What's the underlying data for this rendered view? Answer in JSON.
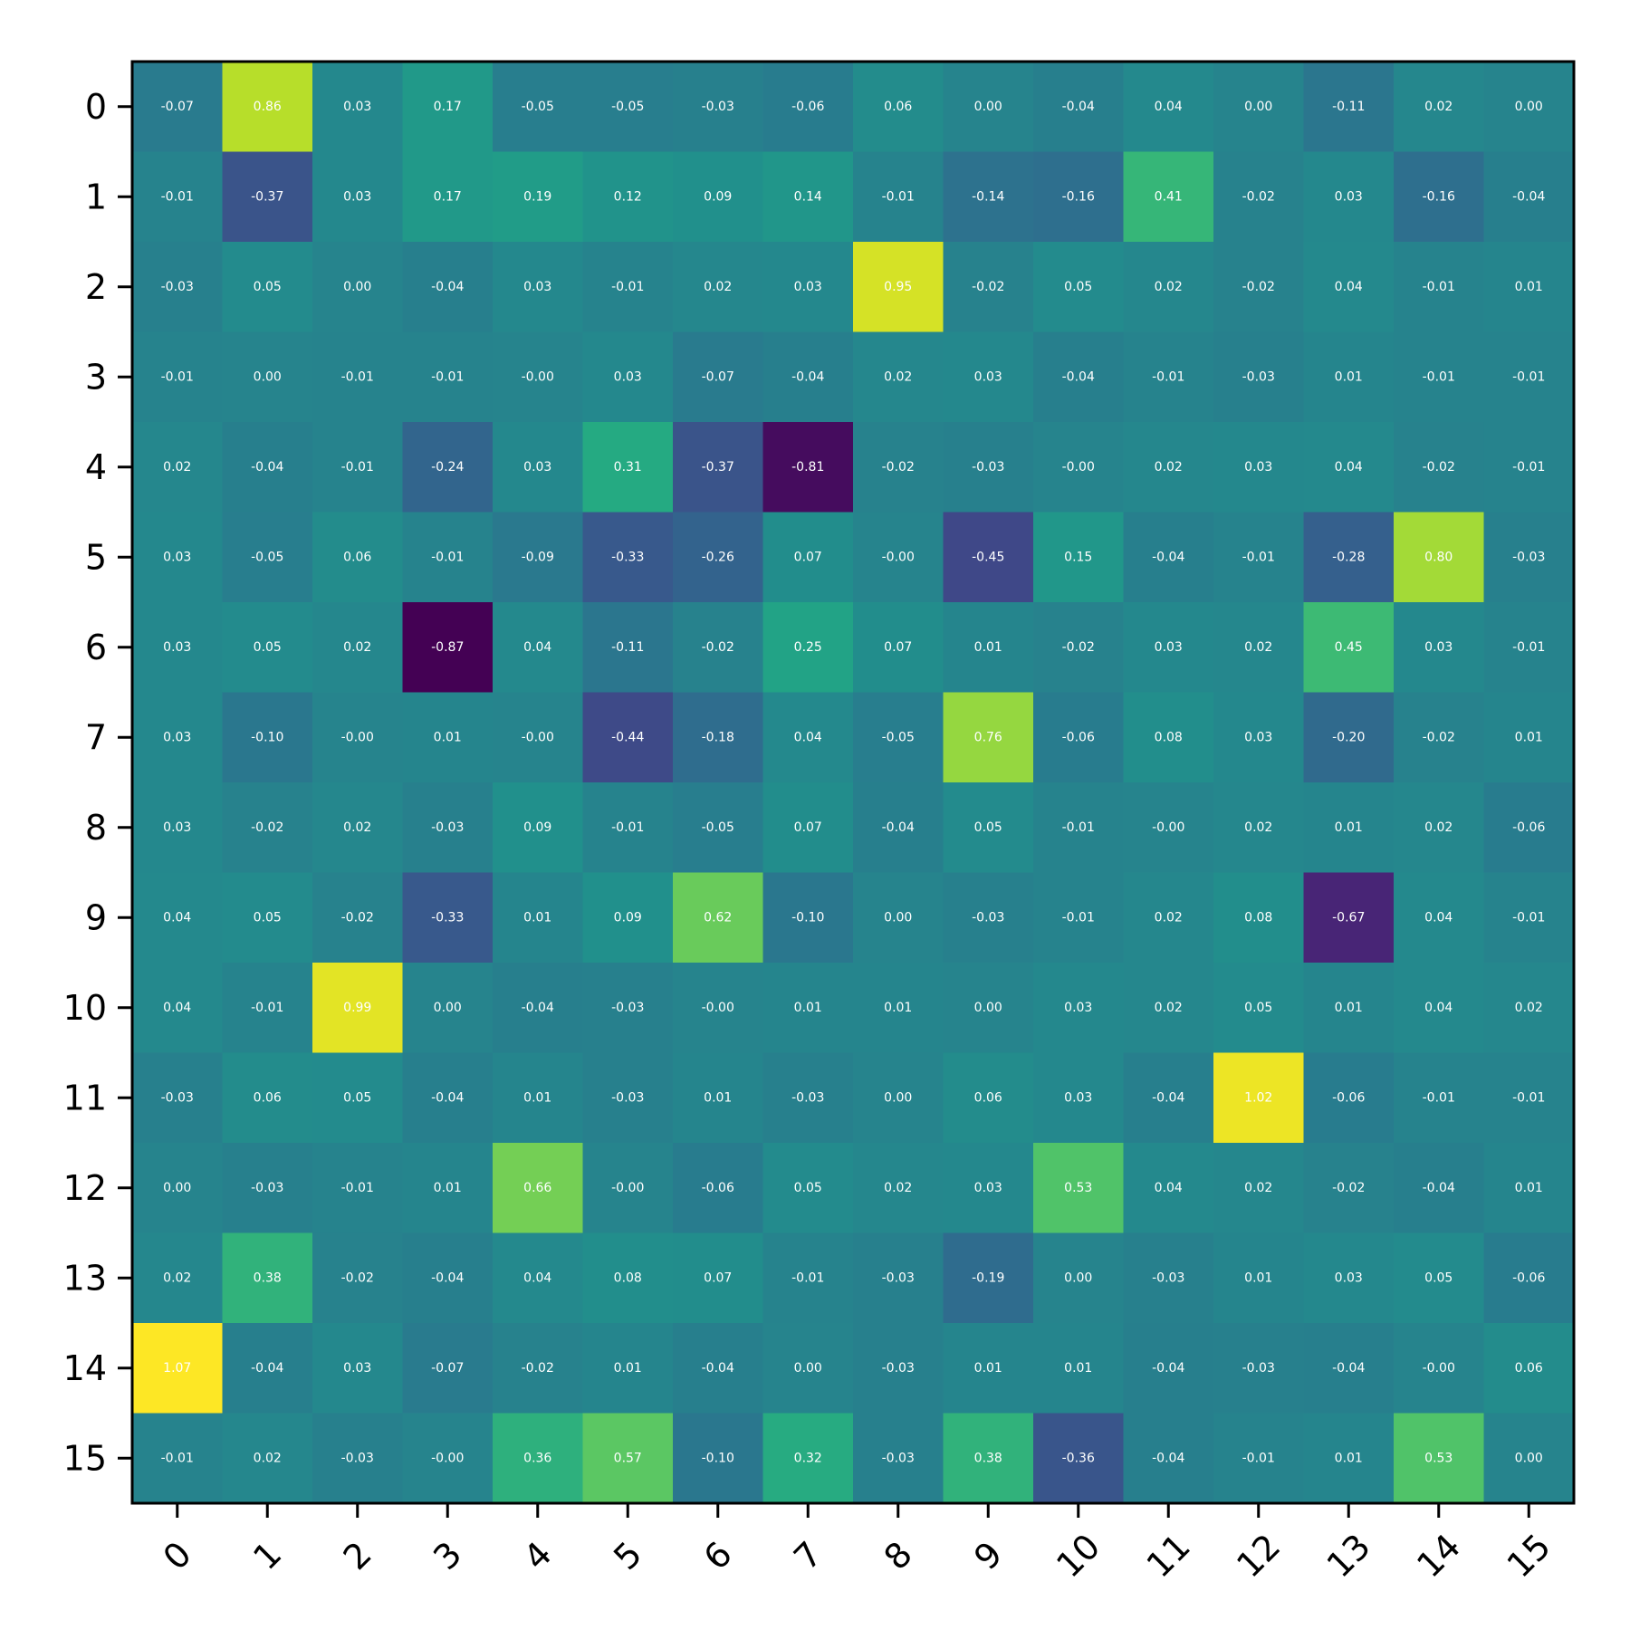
{
  "chart_data": {
    "type": "heatmap",
    "title": "",
    "xlabel": "",
    "ylabel": "",
    "x_categories": [
      "0",
      "1",
      "2",
      "3",
      "4",
      "5",
      "6",
      "7",
      "8",
      "9",
      "10",
      "11",
      "12",
      "13",
      "14",
      "15"
    ],
    "y_categories": [
      "0",
      "1",
      "2",
      "3",
      "4",
      "5",
      "6",
      "7",
      "8",
      "9",
      "10",
      "11",
      "12",
      "13",
      "14",
      "15"
    ],
    "values": [
      [
        -0.07,
        0.86,
        0.03,
        0.17,
        -0.05,
        -0.05,
        -0.03,
        -0.06,
        0.06,
        0.0,
        -0.04,
        0.04,
        0.0,
        -0.11,
        0.02,
        0.0
      ],
      [
        -0.01,
        -0.37,
        0.03,
        0.17,
        0.19,
        0.12,
        0.09,
        0.14,
        -0.01,
        -0.14,
        -0.16,
        0.41,
        -0.02,
        0.03,
        -0.16,
        -0.04
      ],
      [
        -0.03,
        0.05,
        0.0,
        -0.04,
        0.03,
        -0.01,
        0.02,
        0.03,
        0.95,
        -0.02,
        0.05,
        0.02,
        -0.02,
        0.04,
        -0.01,
        0.01
      ],
      [
        -0.01,
        0.0,
        -0.01,
        -0.01,
        -0.0,
        0.03,
        -0.07,
        -0.04,
        0.02,
        0.03,
        -0.04,
        -0.01,
        -0.03,
        0.01,
        -0.01,
        -0.01
      ],
      [
        0.02,
        -0.04,
        -0.01,
        -0.24,
        0.03,
        0.31,
        -0.37,
        -0.81,
        -0.02,
        -0.03,
        -0.0,
        0.02,
        0.03,
        0.04,
        -0.02,
        -0.01
      ],
      [
        0.03,
        -0.05,
        0.06,
        -0.01,
        -0.09,
        -0.33,
        -0.26,
        0.07,
        -0.0,
        -0.45,
        0.15,
        -0.04,
        -0.01,
        -0.28,
        0.8,
        -0.03
      ],
      [
        0.03,
        0.05,
        0.02,
        -0.87,
        0.04,
        -0.11,
        -0.02,
        0.25,
        0.07,
        0.01,
        -0.02,
        0.03,
        0.02,
        0.45,
        0.03,
        -0.01
      ],
      [
        0.03,
        -0.1,
        -0.0,
        0.01,
        -0.0,
        -0.44,
        -0.18,
        0.04,
        -0.05,
        0.76,
        -0.06,
        0.08,
        0.03,
        -0.2,
        -0.02,
        0.01
      ],
      [
        0.03,
        -0.02,
        0.02,
        -0.03,
        0.09,
        -0.01,
        -0.05,
        0.07,
        -0.04,
        0.05,
        -0.01,
        -0.0,
        0.02,
        0.01,
        0.02,
        -0.06
      ],
      [
        0.04,
        0.05,
        -0.02,
        -0.33,
        0.01,
        0.09,
        0.62,
        -0.1,
        0.0,
        -0.03,
        -0.01,
        0.02,
        0.08,
        -0.67,
        0.04,
        -0.01
      ],
      [
        0.04,
        -0.01,
        0.99,
        0.0,
        -0.04,
        -0.03,
        -0.0,
        0.01,
        0.01,
        0.0,
        0.03,
        0.02,
        0.05,
        0.01,
        0.04,
        0.02
      ],
      [
        -0.03,
        0.06,
        0.05,
        -0.04,
        0.01,
        -0.03,
        0.01,
        -0.03,
        0.0,
        0.06,
        0.03,
        -0.04,
        1.02,
        -0.06,
        -0.01,
        -0.01
      ],
      [
        0.0,
        -0.03,
        -0.01,
        0.01,
        0.66,
        -0.0,
        -0.06,
        0.05,
        0.02,
        0.03,
        0.53,
        0.04,
        0.02,
        -0.02,
        -0.04,
        0.01
      ],
      [
        0.02,
        0.38,
        -0.02,
        -0.04,
        0.04,
        0.08,
        0.07,
        -0.01,
        -0.03,
        -0.19,
        0.0,
        -0.03,
        0.01,
        0.03,
        0.05,
        -0.06
      ],
      [
        1.07,
        -0.04,
        0.03,
        -0.07,
        -0.02,
        0.01,
        -0.04,
        0.0,
        -0.03,
        0.01,
        0.01,
        -0.04,
        -0.03,
        -0.04,
        -0.0,
        0.06
      ],
      [
        -0.01,
        0.02,
        -0.03,
        -0.0,
        0.36,
        0.57,
        -0.1,
        0.32,
        -0.03,
        0.38,
        -0.36,
        -0.04,
        -0.01,
        0.01,
        0.53,
        0.0
      ]
    ],
    "cell_labels": [
      [
        "-0.07",
        "0.86",
        "0.03",
        "0.17",
        "-0.05",
        "-0.05",
        "-0.03",
        "-0.06",
        "0.06",
        "0.00",
        "-0.04",
        "0.04",
        "0.00",
        "-0.11",
        "0.02",
        "0.00"
      ],
      [
        "-0.01",
        "-0.37",
        "0.03",
        "0.17",
        "0.19",
        "0.12",
        "0.09",
        "0.14",
        "-0.01",
        "-0.14",
        "-0.16",
        "0.41",
        "-0.02",
        "0.03",
        "-0.16",
        "-0.04"
      ],
      [
        "-0.03",
        "0.05",
        "0.00",
        "-0.04",
        "0.03",
        "-0.01",
        "0.02",
        "0.03",
        "0.95",
        "-0.02",
        "0.05",
        "0.02",
        "-0.02",
        "0.04",
        "-0.01",
        "0.01"
      ],
      [
        "-0.01",
        "0.00",
        "-0.01",
        "-0.01",
        "-0.00",
        "0.03",
        "-0.07",
        "-0.04",
        "0.02",
        "0.03",
        "-0.04",
        "-0.01",
        "-0.03",
        "0.01",
        "-0.01",
        "-0.01"
      ],
      [
        "0.02",
        "-0.04",
        "-0.01",
        "-0.24",
        "0.03",
        "0.31",
        "-0.37",
        "-0.81",
        "-0.02",
        "-0.03",
        "-0.00",
        "0.02",
        "0.03",
        "0.04",
        "-0.02",
        "-0.01"
      ],
      [
        "0.03",
        "-0.05",
        "0.06",
        "-0.01",
        "-0.09",
        "-0.33",
        "-0.26",
        "0.07",
        "-0.00",
        "-0.45",
        "0.15",
        "-0.04",
        "-0.01",
        "-0.28",
        "0.80",
        "-0.03"
      ],
      [
        "0.03",
        "0.05",
        "0.02",
        "-0.87",
        "0.04",
        "-0.11",
        "-0.02",
        "0.25",
        "0.07",
        "0.01",
        "-0.02",
        "0.03",
        "0.02",
        "0.45",
        "0.03",
        "-0.01"
      ],
      [
        "0.03",
        "-0.10",
        "-0.00",
        "0.01",
        "-0.00",
        "-0.44",
        "-0.18",
        "0.04",
        "-0.05",
        "0.76",
        "-0.06",
        "0.08",
        "0.03",
        "-0.20",
        "-0.02",
        "0.01"
      ],
      [
        "0.03",
        "-0.02",
        "0.02",
        "-0.03",
        "0.09",
        "-0.01",
        "-0.05",
        "0.07",
        "-0.04",
        "0.05",
        "-0.01",
        "-0.00",
        "0.02",
        "0.01",
        "0.02",
        "-0.06"
      ],
      [
        "0.04",
        "0.05",
        "-0.02",
        "-0.33",
        "0.01",
        "0.09",
        "0.62",
        "-0.10",
        "0.00",
        "-0.03",
        "-0.01",
        "0.02",
        "0.08",
        "-0.67",
        "0.04",
        "-0.01"
      ],
      [
        "0.04",
        "-0.01",
        "0.99",
        "0.00",
        "-0.04",
        "-0.03",
        "-0.00",
        "0.01",
        "0.01",
        "0.00",
        "0.03",
        "0.02",
        "0.05",
        "0.01",
        "0.04",
        "0.02"
      ],
      [
        "-0.03",
        "0.06",
        "0.05",
        "-0.04",
        "0.01",
        "-0.03",
        "0.01",
        "-0.03",
        "0.00",
        "0.06",
        "0.03",
        "-0.04",
        "1.02",
        "-0.06",
        "-0.01",
        "-0.01"
      ],
      [
        "0.00",
        "-0.03",
        "-0.01",
        "0.01",
        "0.66",
        "-0.00",
        "-0.06",
        "0.05",
        "0.02",
        "0.03",
        "0.53",
        "0.04",
        "0.02",
        "-0.02",
        "-0.04",
        "0.01"
      ],
      [
        "0.02",
        "0.38",
        "-0.02",
        "-0.04",
        "0.04",
        "0.08",
        "0.07",
        "-0.01",
        "-0.03",
        "-0.19",
        "0.00",
        "-0.03",
        "0.01",
        "0.03",
        "0.05",
        "-0.06"
      ],
      [
        "1.07",
        "-0.04",
        "0.03",
        "-0.07",
        "-0.02",
        "0.01",
        "-0.04",
        "0.00",
        "-0.03",
        "0.01",
        "0.01",
        "-0.04",
        "-0.03",
        "-0.04",
        "-0.00",
        "0.06"
      ],
      [
        "-0.01",
        "0.02",
        "-0.03",
        "-0.00",
        "0.36",
        "0.57",
        "-0.10",
        "0.32",
        "-0.03",
        "0.38",
        "-0.36",
        "-0.04",
        "-0.01",
        "0.01",
        "0.53",
        "0.00"
      ]
    ],
    "colormap": "viridis",
    "value_range": [
      -0.87,
      1.07
    ],
    "legend": "none",
    "grid": false,
    "x_tick_rotation_deg": -45
  }
}
